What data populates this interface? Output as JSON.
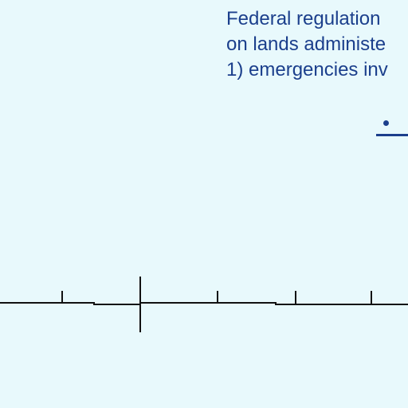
{
  "notice": {
    "lines": [
      "Federal regulation",
      "on lands administe",
      "1) emergencies inv"
    ]
  },
  "colors": {
    "background": "#e8f9fc",
    "text": "#1b3f8c",
    "axis": "#111111"
  }
}
